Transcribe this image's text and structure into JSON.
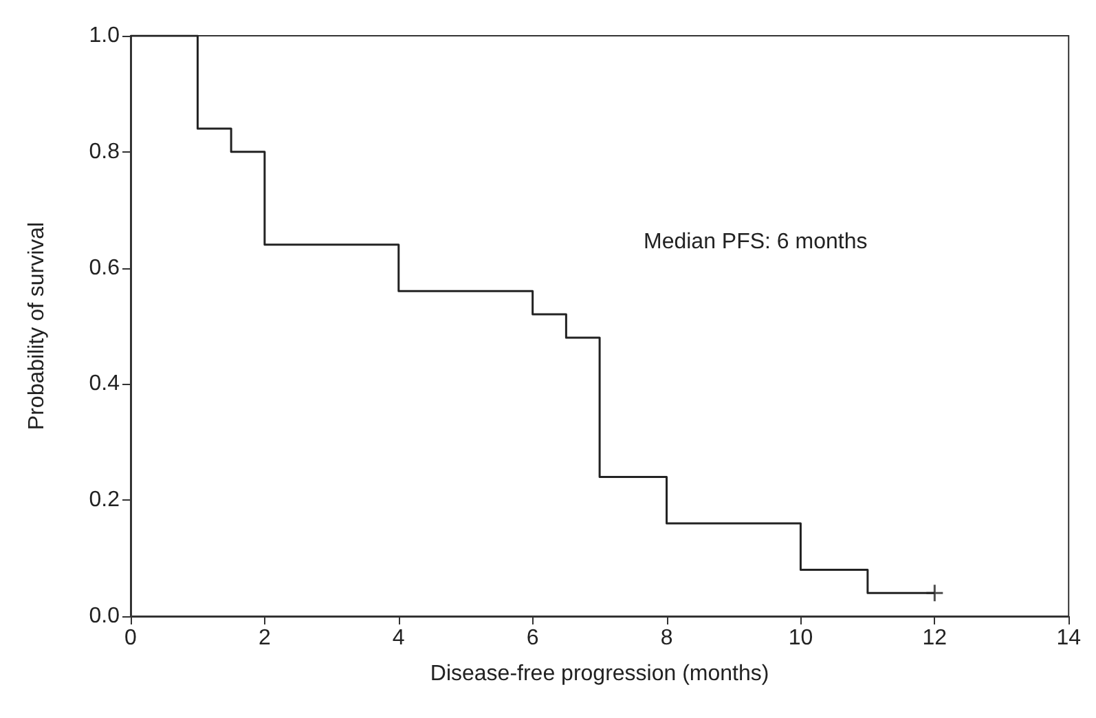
{
  "chart_data": {
    "type": "step",
    "xlabel": "Disease-free progression (months)",
    "ylabel": "Probability of survival",
    "annotations": [
      "Median PFS: 6 months"
    ],
    "series": [
      {
        "color": "#222222",
        "x": [
          0,
          1,
          1.5,
          2,
          4,
          6,
          6.5,
          7,
          8,
          10,
          11,
          12
        ],
        "values": [
          1,
          0.84,
          0.8,
          0.64,
          0.56,
          0.52,
          0.48,
          0.24,
          0.16,
          0.08,
          0.04,
          0.04
        ],
        "marker": "none"
      },
      {
        "type": "scatter",
        "color": "#222222",
        "x": [
          12
        ],
        "values": [
          0.04
        ],
        "marker": "cross"
      }
    ],
    "xlim": [
      0,
      14
    ],
    "xticks": [
      0,
      2,
      4,
      6,
      8,
      10,
      12,
      14
    ],
    "ylim": [
      0,
      1
    ],
    "yticks": [
      {
        "value": 0,
        "label": "0.0"
      },
      0.2,
      0.4,
      0.6,
      0.8,
      {
        "value": 1,
        "label": "1.0"
      }
    ],
    "grid": false
  }
}
